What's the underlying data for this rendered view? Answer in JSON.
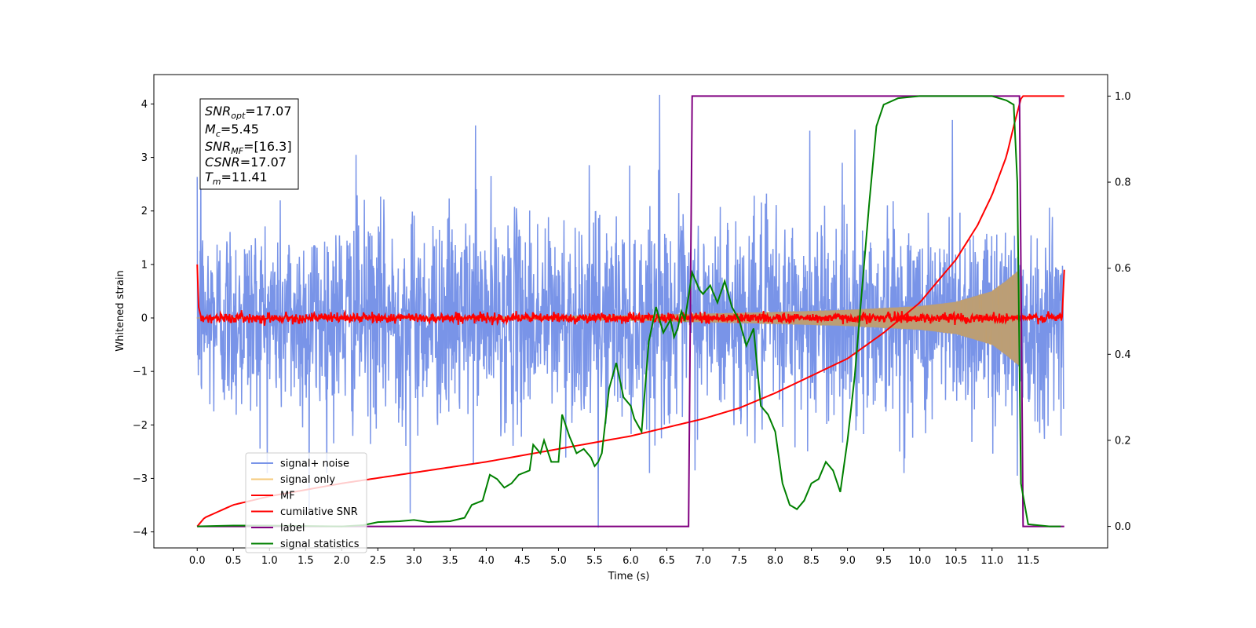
{
  "chart_data": {
    "type": "line",
    "title": "",
    "xlabel": "Time (s)",
    "ylabel": "Whitened strain",
    "y2label": "",
    "xlim": [
      -0.6,
      12.6
    ],
    "ylim": [
      -4.3,
      4.55
    ],
    "y2lim": [
      -0.05,
      1.05
    ],
    "xticks": [
      "0.0",
      "0.5",
      "1.0",
      "1.5",
      "2.0",
      "2.5",
      "3.0",
      "3.5",
      "4.0",
      "4.5",
      "5.0",
      "5.5",
      "6.0",
      "6.5",
      "7.0",
      "7.5",
      "8.0",
      "8.5",
      "9.0",
      "9.5",
      "10.0",
      "10.5",
      "11.0",
      "11.5"
    ],
    "xtick_values": [
      0.0,
      0.5,
      1.0,
      1.5,
      2.0,
      2.5,
      3.0,
      3.5,
      4.0,
      4.5,
      5.0,
      5.5,
      6.0,
      6.5,
      7.0,
      7.5,
      8.0,
      8.5,
      9.0,
      9.5,
      10.0,
      10.5,
      11.0,
      11.5
    ],
    "yticks": [
      "4",
      "3",
      "2",
      "1",
      "0",
      "−1",
      "−2",
      "−3",
      "−4"
    ],
    "ytick_values": [
      4,
      3,
      2,
      1,
      0,
      -1,
      -2,
      -3,
      -4
    ],
    "y2ticks": [
      "1.0",
      "0.8",
      "0.6",
      "0.4",
      "0.2",
      "0.0"
    ],
    "y2tick_values": [
      1.0,
      0.8,
      0.6,
      0.4,
      0.2,
      0.0
    ],
    "grid": false,
    "legend_position": "lower-left",
    "stats_box": {
      "snr_opt": {
        "sym": "SNR",
        "sub": "opt",
        "val": "=17.07"
      },
      "mc": {
        "sym": "M",
        "sub": "c",
        "val": "=5.45"
      },
      "snr_mf": {
        "sym": "SNR",
        "sub": "MF",
        "val": "=[16.3]"
      },
      "csnr": {
        "sym": "CSNR",
        "sub": "",
        "val": "=17.07"
      },
      "tm": {
        "sym": "T",
        "sub": "m",
        "val": "=11.41"
      }
    },
    "series": [
      {
        "name": "signal+ noise",
        "color": "#7994e8",
        "axis": "left",
        "description": "whitened noise, amplitude ~±2 with spikes to ~4",
        "x_range": [
          0.0,
          11.99
        ],
        "spike_points": [
          [
            0.05,
            2.7
          ],
          [
            2.2,
            3.05
          ],
          [
            3.85,
            3.6
          ],
          [
            6.4,
            4.17
          ],
          [
            8.48,
            3.5
          ],
          [
            9.1,
            3.52
          ],
          [
            10.45,
            3.7
          ],
          [
            1.55,
            -3.6
          ],
          [
            2.95,
            -3.65
          ],
          [
            5.55,
            -3.92
          ],
          [
            11.35,
            -2.95
          ]
        ]
      },
      {
        "name": "signal only",
        "color": "#f5c97a",
        "axis": "left",
        "description": "chirp envelope growing from ~0 to ~0.9 near merger",
        "envelope": [
          [
            0.0,
            0.01
          ],
          [
            2.0,
            0.015
          ],
          [
            4.0,
            0.025
          ],
          [
            6.0,
            0.05
          ],
          [
            7.0,
            0.08
          ],
          [
            8.0,
            0.11
          ],
          [
            9.0,
            0.15
          ],
          [
            10.0,
            0.22
          ],
          [
            10.5,
            0.3
          ],
          [
            11.0,
            0.5
          ],
          [
            11.2,
            0.7
          ],
          [
            11.38,
            0.9
          ],
          [
            11.41,
            0.0
          ],
          [
            12.0,
            0.0
          ]
        ]
      },
      {
        "name": "MF",
        "color": "#ff0000",
        "axis": "left",
        "description": "matched filter output ~0 with ±0.1 noise",
        "points": [
          [
            0.0,
            1.0
          ],
          [
            0.02,
            0.2
          ],
          [
            0.05,
            0.0
          ],
          [
            11.98,
            0.0
          ],
          [
            12.0,
            0.9
          ]
        ]
      },
      {
        "name": "cumilative SNR",
        "color": "#ff0000",
        "axis": "right",
        "points": [
          [
            0.0,
            0.0
          ],
          [
            0.1,
            0.02
          ],
          [
            0.5,
            0.05
          ],
          [
            1.0,
            0.07
          ],
          [
            2.0,
            0.1
          ],
          [
            3.0,
            0.125
          ],
          [
            4.0,
            0.15
          ],
          [
            5.0,
            0.18
          ],
          [
            6.0,
            0.21
          ],
          [
            7.0,
            0.25
          ],
          [
            7.5,
            0.275
          ],
          [
            8.0,
            0.31
          ],
          [
            8.5,
            0.35
          ],
          [
            9.0,
            0.39
          ],
          [
            9.5,
            0.45
          ],
          [
            10.0,
            0.52
          ],
          [
            10.5,
            0.62
          ],
          [
            10.8,
            0.7
          ],
          [
            11.0,
            0.77
          ],
          [
            11.2,
            0.86
          ],
          [
            11.3,
            0.93
          ],
          [
            11.41,
            1.0
          ],
          [
            12.0,
            1.0
          ]
        ]
      },
      {
        "name": "label",
        "color": "#800080",
        "axis": "right",
        "points": [
          [
            0.0,
            0.0
          ],
          [
            6.8,
            0.0
          ],
          [
            6.85,
            1.0
          ],
          [
            11.38,
            1.0
          ],
          [
            11.43,
            0.0
          ],
          [
            12.0,
            0.0
          ]
        ]
      },
      {
        "name": "signal statistics",
        "color": "#008000",
        "axis": "right",
        "points": [
          [
            0.0,
            0.0
          ],
          [
            0.5,
            0.002
          ],
          [
            1.0,
            0.002
          ],
          [
            2.0,
            0.0
          ],
          [
            2.3,
            0.003
          ],
          [
            2.5,
            0.01
          ],
          [
            2.8,
            0.012
          ],
          [
            3.0,
            0.015
          ],
          [
            3.2,
            0.01
          ],
          [
            3.5,
            0.012
          ],
          [
            3.7,
            0.02
          ],
          [
            3.8,
            0.05
          ],
          [
            3.95,
            0.06
          ],
          [
            4.05,
            0.12
          ],
          [
            4.15,
            0.11
          ],
          [
            4.25,
            0.09
          ],
          [
            4.35,
            0.1
          ],
          [
            4.45,
            0.12
          ],
          [
            4.6,
            0.13
          ],
          [
            4.65,
            0.19
          ],
          [
            4.75,
            0.17
          ],
          [
            4.8,
            0.2
          ],
          [
            4.9,
            0.15
          ],
          [
            5.0,
            0.15
          ],
          [
            5.05,
            0.26
          ],
          [
            5.15,
            0.21
          ],
          [
            5.25,
            0.17
          ],
          [
            5.35,
            0.18
          ],
          [
            5.45,
            0.16
          ],
          [
            5.5,
            0.14
          ],
          [
            5.55,
            0.15
          ],
          [
            5.6,
            0.17
          ],
          [
            5.7,
            0.32
          ],
          [
            5.8,
            0.38
          ],
          [
            5.9,
            0.3
          ],
          [
            6.0,
            0.28
          ],
          [
            6.05,
            0.25
          ],
          [
            6.15,
            0.22
          ],
          [
            6.25,
            0.43
          ],
          [
            6.35,
            0.51
          ],
          [
            6.45,
            0.45
          ],
          [
            6.55,
            0.48
          ],
          [
            6.6,
            0.44
          ],
          [
            6.65,
            0.46
          ],
          [
            6.7,
            0.5
          ],
          [
            6.75,
            0.48
          ],
          [
            6.85,
            0.59
          ],
          [
            6.95,
            0.55
          ],
          [
            7.0,
            0.54
          ],
          [
            7.1,
            0.56
          ],
          [
            7.2,
            0.52
          ],
          [
            7.3,
            0.57
          ],
          [
            7.4,
            0.51
          ],
          [
            7.5,
            0.48
          ],
          [
            7.6,
            0.42
          ],
          [
            7.7,
            0.46
          ],
          [
            7.8,
            0.28
          ],
          [
            7.9,
            0.26
          ],
          [
            8.0,
            0.22
          ],
          [
            8.1,
            0.1
          ],
          [
            8.2,
            0.05
          ],
          [
            8.3,
            0.04
          ],
          [
            8.4,
            0.06
          ],
          [
            8.5,
            0.1
          ],
          [
            8.6,
            0.11
          ],
          [
            8.7,
            0.15
          ],
          [
            8.8,
            0.13
          ],
          [
            8.9,
            0.08
          ],
          [
            9.0,
            0.2
          ],
          [
            9.1,
            0.35
          ],
          [
            9.2,
            0.55
          ],
          [
            9.3,
            0.75
          ],
          [
            9.4,
            0.93
          ],
          [
            9.5,
            0.98
          ],
          [
            9.7,
            0.995
          ],
          [
            10.0,
            1.0
          ],
          [
            10.5,
            1.0
          ],
          [
            11.0,
            1.0
          ],
          [
            11.2,
            0.99
          ],
          [
            11.3,
            0.98
          ],
          [
            11.35,
            0.8
          ],
          [
            11.4,
            0.1
          ],
          [
            11.5,
            0.005
          ],
          [
            11.8,
            0.0
          ],
          [
            11.95,
            0.0
          ]
        ]
      }
    ]
  }
}
